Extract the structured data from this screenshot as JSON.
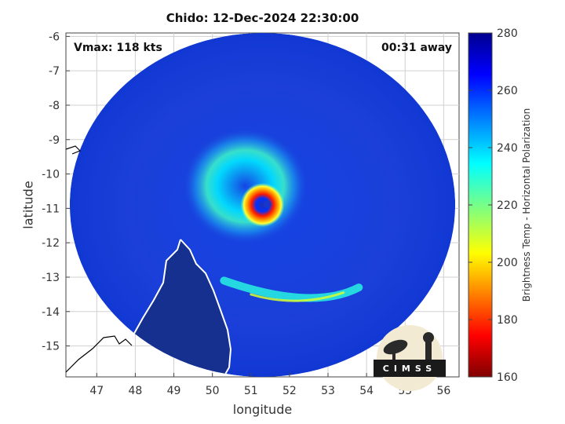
{
  "chart_data": {
    "type": "heatmap",
    "title": "Chido: 12-Dec-2024 22:30:00",
    "annotations": {
      "vmax": "Vmax: 118 kts",
      "time_away": "00:31 away"
    },
    "xlabel": "longitude",
    "ylabel": "latitude",
    "xlim": [
      46.2,
      56.4
    ],
    "ylim": [
      -15.9,
      -5.9
    ],
    "xticks": [
      47,
      48,
      49,
      50,
      51,
      52,
      53,
      54,
      55,
      56
    ],
    "yticks": [
      -6,
      -7,
      -8,
      -9,
      -10,
      -11,
      -12,
      -13,
      -14,
      -15
    ],
    "grid": true,
    "colorbar": {
      "label": "Brightness Temp - Horizontal Polarization",
      "range": [
        160,
        280
      ],
      "ticks": [
        280,
        260,
        240,
        220,
        200,
        180,
        160
      ],
      "colormap": "jet"
    },
    "swath": {
      "center": [
        51.3,
        -10.9
      ],
      "lon_radius": 5.0,
      "lat_radius": 5.0
    },
    "storm_center": [
      51.3,
      -10.9
    ],
    "features": [
      {
        "name": "eye",
        "lon": 51.3,
        "lat": -10.9,
        "tb": 255
      },
      {
        "name": "eyewall",
        "lon": 51.3,
        "lat": -10.9,
        "tb": 180
      },
      {
        "name": "inner rainband",
        "lon": 50.8,
        "lat": -10.6,
        "tb": 225
      },
      {
        "name": "southern rainband",
        "lon": 52.4,
        "lat": -13.5,
        "tb": 228
      }
    ],
    "logo": "CIMSS"
  },
  "colors": {
    "ocean": "#1a3cd6",
    "land": "#1a2a8c",
    "coast": "#ffffff",
    "grid": "#c8c8c8"
  }
}
